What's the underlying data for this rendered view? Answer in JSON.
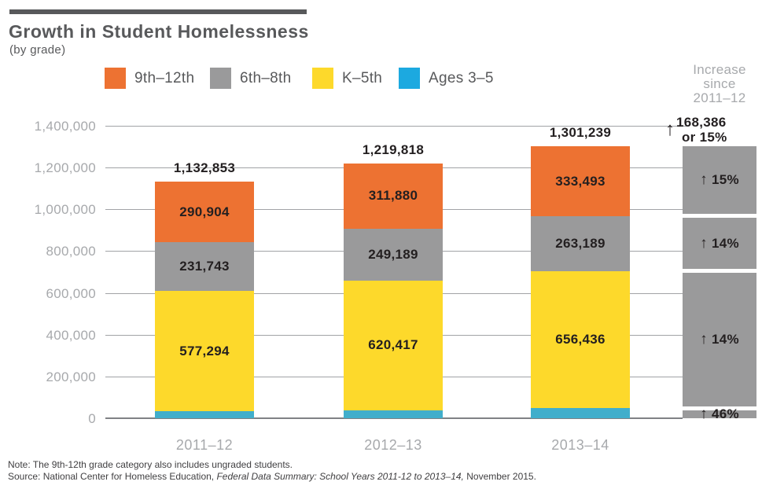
{
  "header": {
    "title": "Growth in Student Homelessness",
    "subtitle": "(by grade)"
  },
  "colors": {
    "title_gray": "#58595B",
    "axis_gray": "#A7A9AC",
    "label_dark": "#231F20",
    "gridline": "#A1A3A6",
    "baseline": "#808285",
    "increase_block_gray": "#9A9A9B"
  },
  "legend": [
    {
      "label": "9th–12th",
      "color": "#ED7232"
    },
    {
      "label": "6th–8th",
      "color": "#9A9A9B"
    },
    {
      "label": "K–5th",
      "color": "#FDD92B"
    },
    {
      "label": "Ages 3–5",
      "color": "#1CA9E0"
    }
  ],
  "chart_data": {
    "type": "bar",
    "stacked": true,
    "title": "Growth in Student Homelessness",
    "subtitle": "(by grade)",
    "categories": [
      "2011–12",
      "2012–13",
      "2013–14"
    ],
    "series": [
      {
        "name": "Ages 3–5",
        "color": "#41AECB",
        "values": [
          32912,
          38332,
          48121
        ],
        "labels": [
          "32,912",
          "38,332",
          "48,121"
        ]
      },
      {
        "name": "K–5th",
        "color": "#FDD92B",
        "values": [
          577294,
          620417,
          656436
        ],
        "labels": [
          "577,294",
          "620,417",
          "656,436"
        ]
      },
      {
        "name": "6th–8th",
        "color": "#9A9A9B",
        "values": [
          231743,
          249189,
          263189
        ],
        "labels": [
          "231,743",
          "249,189",
          "263,189"
        ]
      },
      {
        "name": "9th–12th",
        "color": "#ED7232",
        "values": [
          290904,
          311880,
          333493
        ],
        "labels": [
          "290,904",
          "311,880",
          "333,493"
        ]
      }
    ],
    "totals": [
      1132853,
      1219818,
      1301239
    ],
    "totals_labels": [
      "1,132,853",
      "1,219,818",
      "1,301,239"
    ],
    "ylim": [
      0,
      1400000
    ],
    "ytick_step": 200000,
    "ytick_labels": [
      "1,400,000",
      "1,200,000",
      "1,000,000",
      "800,000",
      "600,000",
      "400,000",
      "200,000",
      "0"
    ],
    "grid": true,
    "legend_position": "top"
  },
  "increase_panel": {
    "header_lines": [
      "Increase",
      "since",
      "2011–12"
    ],
    "total": {
      "arrow": "↑",
      "value": "168,386",
      "suffix": "or 15%"
    },
    "segments": [
      {
        "arrow": "↑",
        "label": "15%"
      },
      {
        "arrow": "↑",
        "label": "14%"
      },
      {
        "arrow": "↑",
        "label": "14%"
      },
      {
        "arrow": "↑",
        "label": "46%"
      }
    ]
  },
  "footnotes": {
    "note": "Note: The 9th-12th grade category also includes ungraded students.",
    "source_prefix": "Source: National Center for Homeless Education, ",
    "source_italic": "Federal Data Summary: School Years 2011-12 to 2013–14,",
    "source_suffix": " November 2015."
  }
}
